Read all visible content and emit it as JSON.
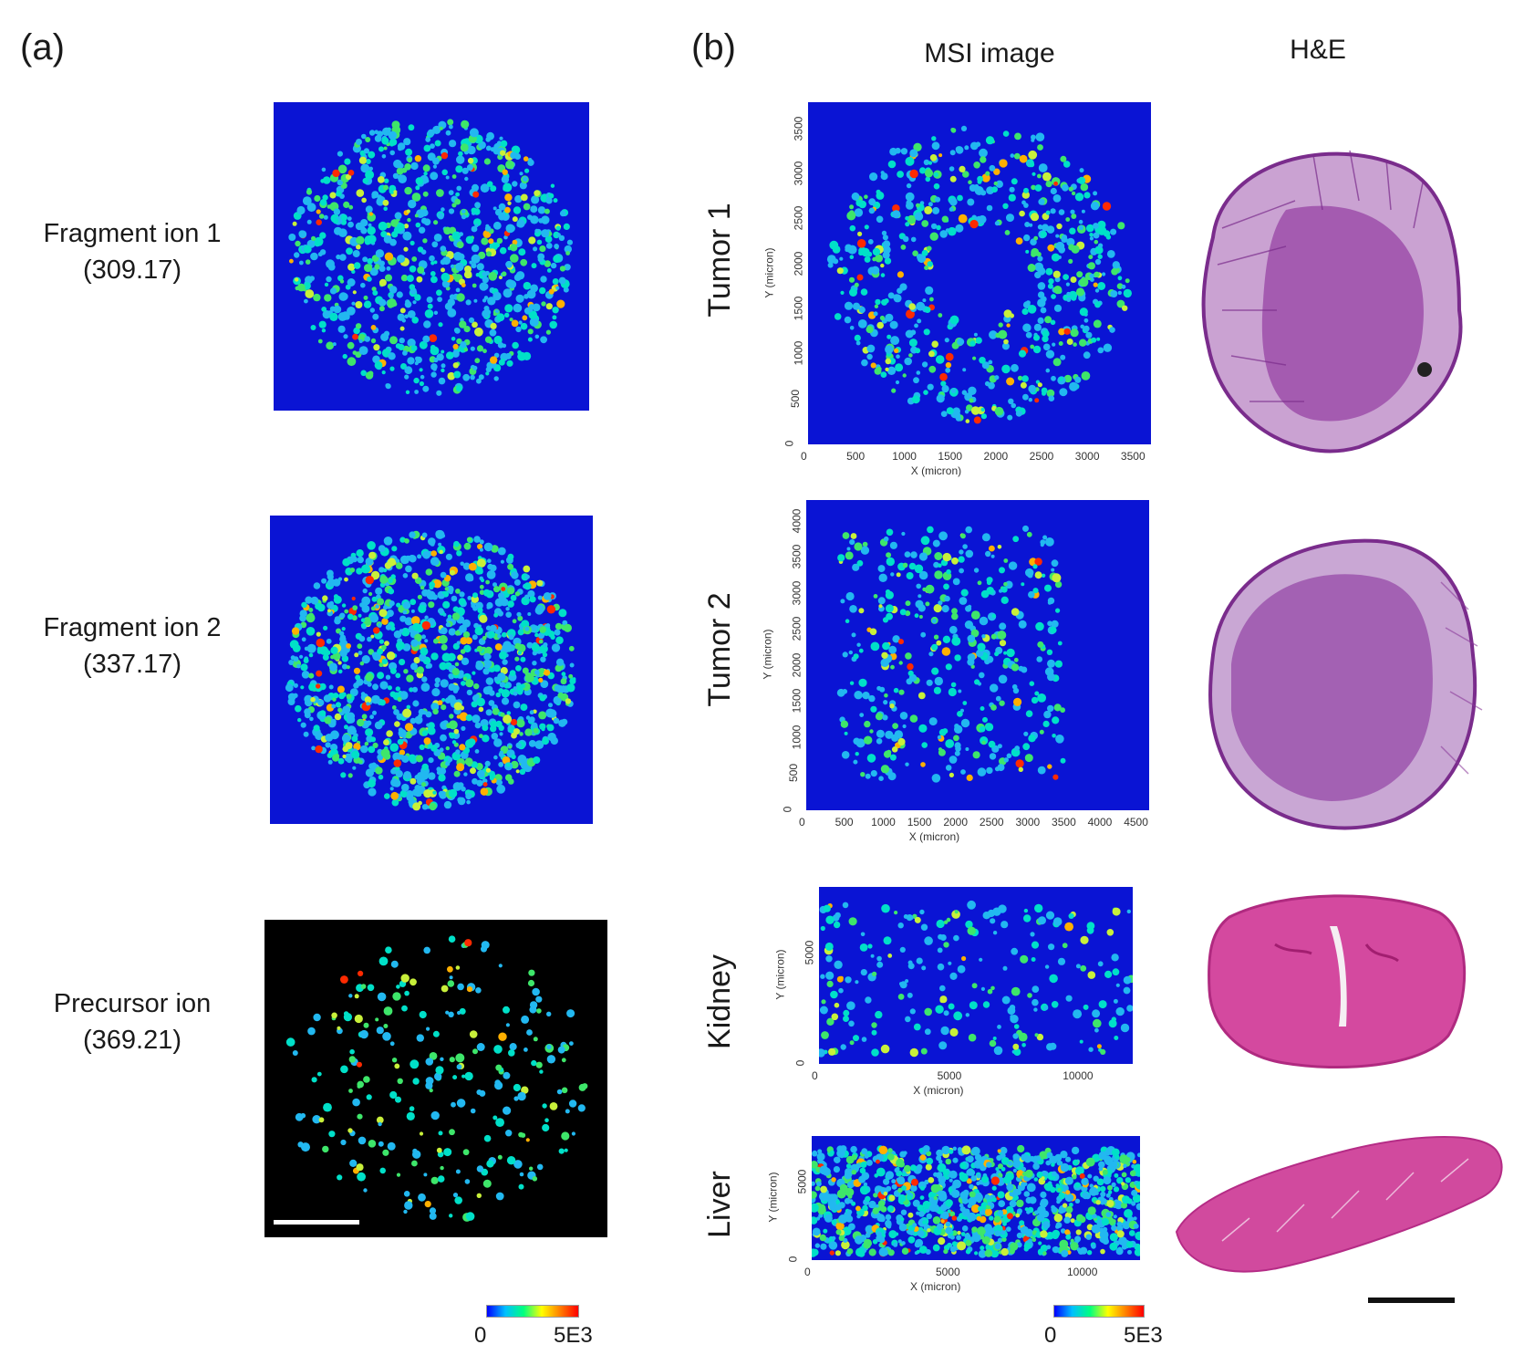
{
  "panel_a": {
    "letter": "(a)",
    "ions": [
      {
        "name": "Fragment ion 1",
        "mz": "(309.17)"
      },
      {
        "name": "Fragment ion 2",
        "mz": "(337.17)"
      },
      {
        "name": "Precursor ion",
        "mz": "(369.21)"
      }
    ],
    "colorbar": {
      "min": "0",
      "max": "5E3"
    }
  },
  "panel_b": {
    "letter": "(b)",
    "col_msi": "MSI image",
    "col_he": "H&E",
    "rows": [
      {
        "label": "Tumor 1",
        "xlabel": "X (micron)",
        "ylabel": "Y (micron)",
        "xticks": [
          "0",
          "500",
          "1000",
          "1500",
          "2000",
          "2500",
          "3000",
          "3500"
        ],
        "yticks": [
          "0",
          "500",
          "1000",
          "1500",
          "2000",
          "2500",
          "3000",
          "3500"
        ]
      },
      {
        "label": "Tumor 2",
        "xlabel": "X (micron)",
        "ylabel": "Y (micron)",
        "xticks": [
          "0",
          "500",
          "1000",
          "1500",
          "2000",
          "2500",
          "3000",
          "3500",
          "4000",
          "4500"
        ],
        "yticks": [
          "0",
          "500",
          "1000",
          "1500",
          "2000",
          "2500",
          "3000",
          "3500",
          "4000"
        ]
      },
      {
        "label": "Kidney",
        "xlabel": "X (micron)",
        "ylabel": "Y (micron)",
        "xticks": [
          "0",
          "5000",
          "10000"
        ],
        "yticks": [
          "0",
          "5000"
        ]
      },
      {
        "label": "Liver",
        "xlabel": "X (micron)",
        "ylabel": "Y (micron)",
        "xticks": [
          "0",
          "5000",
          "10000"
        ],
        "yticks": [
          "0",
          "5000"
        ]
      }
    ],
    "colorbar": {
      "min": "0",
      "max": "5E3"
    }
  },
  "colors": {
    "map_bg": "#0a14d4",
    "precursor_bg": "#000000",
    "he_tumor": "#8a3a9a",
    "he_organ": "#d0479e"
  }
}
